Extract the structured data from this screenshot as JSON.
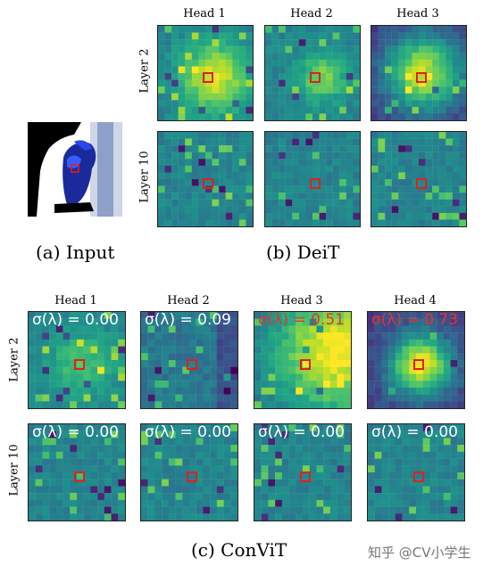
{
  "deit": {
    "heads": [
      "Head 1",
      "Head 2",
      "Head 3"
    ],
    "layers": [
      "Layer 2",
      "Layer 10"
    ],
    "caption": "(b) DeiT"
  },
  "input": {
    "caption": "(a) Input"
  },
  "convit": {
    "heads": [
      "Head 1",
      "Head 2",
      "Head 3",
      "Head 4"
    ],
    "layers": [
      "Layer 2",
      "Layer 10"
    ],
    "sigma_layer2": [
      "σ(λ) = 0.00",
      "σ(λ) = 0.09",
      "σ(λ) = 0.51",
      "σ(λ) = 0.73"
    ],
    "sigma_layer10": [
      "σ(λ) = 0.00",
      "σ(λ) = 0.00",
      "σ(λ) = 0.00",
      "σ(λ) = 0.00"
    ],
    "caption": "(c) ConViT"
  },
  "watermark": "知乎 @CV小学生",
  "colors": {
    "sigma_white": "#ffffff",
    "sigma_red": "#e8332a",
    "marker": "#e0201c"
  }
}
